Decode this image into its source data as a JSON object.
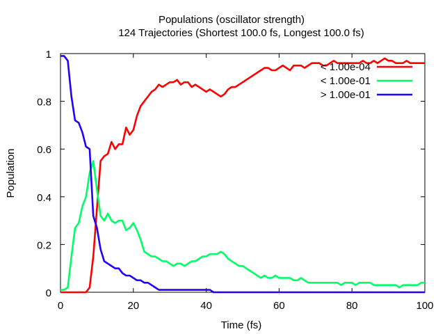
{
  "chart_data": {
    "type": "line",
    "title": "Populations (oscillator strength)",
    "subtitle": "124 Trajectories (Shortest 100.0 fs, Longest 100.0 fs)",
    "xlabel": "Time (fs)",
    "ylabel": "Population",
    "xlim": [
      0,
      100
    ],
    "ylim": [
      0,
      1
    ],
    "xticks": [
      0,
      20,
      40,
      60,
      80,
      100
    ],
    "yticks": [
      0,
      0.2,
      0.4,
      0.6,
      0.8,
      1
    ],
    "ytick_labels": [
      "0",
      "0.2",
      "0.4",
      "0.6",
      "0.8",
      "1"
    ],
    "grid": false,
    "legend_position": "top-right",
    "x": [
      0,
      1,
      2,
      3,
      4,
      5,
      6,
      7,
      8,
      9,
      10,
      11,
      12,
      13,
      14,
      15,
      16,
      17,
      18,
      19,
      20,
      21,
      22,
      23,
      24,
      25,
      26,
      27,
      28,
      29,
      30,
      31,
      32,
      33,
      34,
      35,
      36,
      37,
      38,
      39,
      40,
      41,
      42,
      43,
      44,
      45,
      46,
      47,
      48,
      49,
      50,
      51,
      52,
      53,
      54,
      55,
      56,
      57,
      58,
      59,
      60,
      61,
      62,
      63,
      64,
      65,
      66,
      67,
      68,
      69,
      70,
      71,
      72,
      73,
      74,
      75,
      76,
      77,
      78,
      79,
      80,
      81,
      82,
      83,
      84,
      85,
      86,
      87,
      88,
      89,
      90,
      91,
      92,
      93,
      94,
      95,
      96,
      97,
      98,
      99,
      100
    ],
    "series": [
      {
        "name": "< 1.00e-04",
        "color": "#ff0000",
        "values": [
          0,
          0,
          0,
          0,
          0,
          0,
          0,
          0,
          0.02,
          0.15,
          0.35,
          0.55,
          0.57,
          0.58,
          0.63,
          0.6,
          0.62,
          0.62,
          0.69,
          0.66,
          0.68,
          0.74,
          0.78,
          0.8,
          0.82,
          0.84,
          0.85,
          0.87,
          0.86,
          0.87,
          0.88,
          0.88,
          0.89,
          0.87,
          0.88,
          0.88,
          0.86,
          0.87,
          0.86,
          0.85,
          0.84,
          0.85,
          0.84,
          0.83,
          0.82,
          0.83,
          0.85,
          0.86,
          0.86,
          0.87,
          0.88,
          0.89,
          0.9,
          0.91,
          0.92,
          0.93,
          0.94,
          0.94,
          0.93,
          0.93,
          0.94,
          0.95,
          0.94,
          0.93,
          0.95,
          0.95,
          0.95,
          0.94,
          0.95,
          0.96,
          0.96,
          0.96,
          0.95,
          0.95,
          0.96,
          0.97,
          0.96,
          0.96,
          0.96,
          0.96,
          0.96,
          0.96,
          0.96,
          0.97,
          0.96,
          0.96,
          0.97,
          0.96,
          0.97,
          0.98,
          0.97,
          0.97,
          0.96,
          0.96,
          0.96,
          0.97,
          0.96,
          0.96,
          0.96,
          0.96,
          0.96
        ]
      },
      {
        "name": "< 1.00e-01",
        "color": "#00ff66",
        "values": [
          0.01,
          0.01,
          0.02,
          0.15,
          0.27,
          0.29,
          0.36,
          0.4,
          0.5,
          0.55,
          0.43,
          0.32,
          0.3,
          0.33,
          0.3,
          0.29,
          0.3,
          0.3,
          0.26,
          0.27,
          0.29,
          0.26,
          0.22,
          0.17,
          0.16,
          0.15,
          0.15,
          0.14,
          0.13,
          0.13,
          0.12,
          0.11,
          0.12,
          0.12,
          0.11,
          0.12,
          0.13,
          0.13,
          0.14,
          0.15,
          0.15,
          0.16,
          0.16,
          0.16,
          0.17,
          0.16,
          0.14,
          0.13,
          0.12,
          0.11,
          0.11,
          0.1,
          0.09,
          0.08,
          0.07,
          0.06,
          0.07,
          0.06,
          0.06,
          0.07,
          0.06,
          0.06,
          0.06,
          0.06,
          0.05,
          0.05,
          0.06,
          0.05,
          0.04,
          0.04,
          0.04,
          0.04,
          0.04,
          0.04,
          0.04,
          0.04,
          0.04,
          0.03,
          0.04,
          0.04,
          0.04,
          0.03,
          0.04,
          0.04,
          0.04,
          0.04,
          0.03,
          0.03,
          0.03,
          0.03,
          0.03,
          0.03,
          0.03,
          0.02,
          0.03,
          0.03,
          0.03,
          0.03,
          0.03,
          0.04,
          0.04
        ]
      },
      {
        "name": "> 1.00e-01",
        "color": "#2200ff",
        "values": [
          0.99,
          0.99,
          0.97,
          0.82,
          0.72,
          0.71,
          0.67,
          0.61,
          0.6,
          0.32,
          0.27,
          0.18,
          0.13,
          0.12,
          0.11,
          0.1,
          0.1,
          0.08,
          0.07,
          0.07,
          0.06,
          0.05,
          0.05,
          0.04,
          0.04,
          0.03,
          0.02,
          0.01,
          0.01,
          0.01,
          0.01,
          0.01,
          0.01,
          0.01,
          0.01,
          0.01,
          0.01,
          0.01,
          0.01,
          0.01,
          0.01,
          0.01,
          0,
          0,
          0,
          0,
          0,
          0,
          0,
          0,
          0,
          0,
          0,
          0,
          0,
          0,
          0,
          0,
          0,
          0,
          0,
          0,
          0,
          0,
          0,
          0,
          0,
          0,
          0,
          0,
          0,
          0,
          0,
          0,
          0,
          0,
          0,
          0,
          0,
          0,
          0,
          0,
          0,
          0,
          0,
          0,
          0,
          0,
          0,
          0,
          0,
          0,
          0,
          0,
          0,
          0,
          0,
          0,
          0,
          0,
          0
        ]
      }
    ]
  }
}
